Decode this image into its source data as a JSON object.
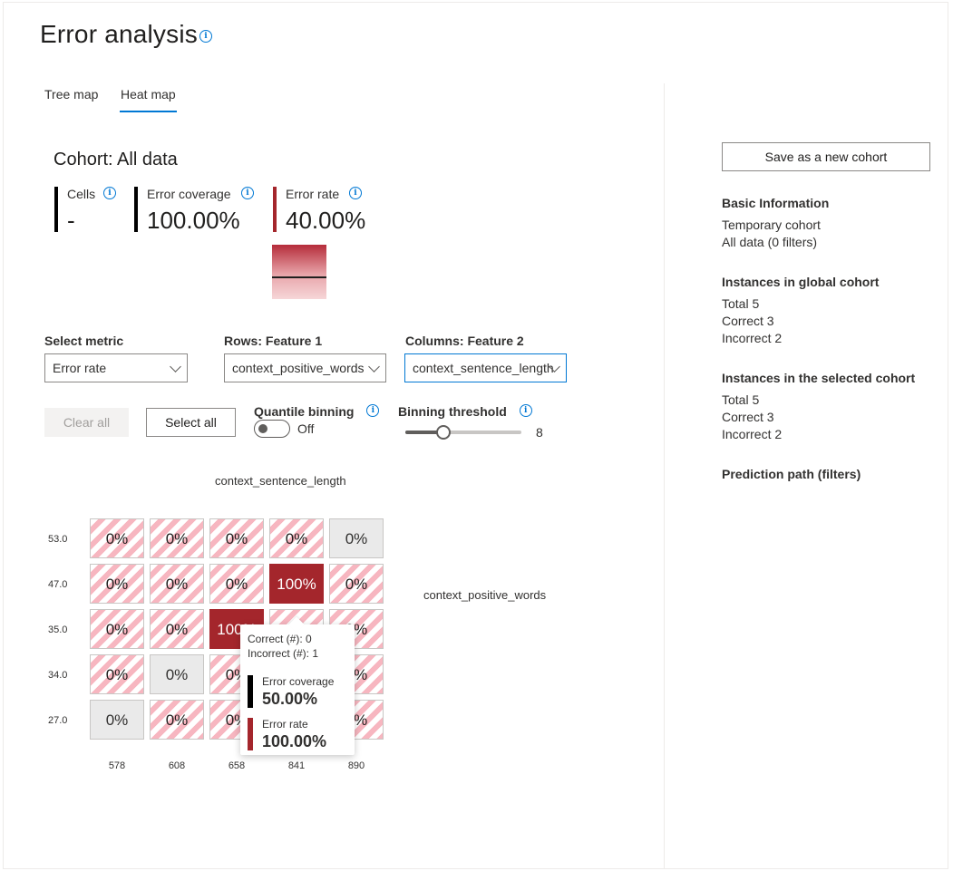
{
  "header": {
    "title": "Error analysis"
  },
  "tabs": [
    {
      "label": "Tree map"
    },
    {
      "label": "Heat map"
    }
  ],
  "cohort": {
    "title": "Cohort: All data",
    "cells_label": "Cells",
    "cells_value": "-",
    "coverage_label": "Error coverage",
    "coverage_value": "100.00%",
    "rate_label": "Error rate",
    "rate_value": "40.00%"
  },
  "controls": {
    "metric_label": "Select metric",
    "metric_value": "Error rate",
    "rows_label": "Rows: Feature 1",
    "rows_value": "context_positive_words",
    "cols_label": "Columns: Feature 2",
    "cols_value": "context_sentence_length",
    "clear_all": "Clear all",
    "select_all": "Select all",
    "quantile_label": "Quantile binning",
    "quantile_state": "Off",
    "threshold_label": "Binning threshold",
    "threshold_value": "8"
  },
  "heatmap": {
    "col_axis_title": "context_sentence_length",
    "row_axis_title": "context_positive_words",
    "row_labels": [
      "53.0",
      "47.0",
      "35.0",
      "34.0",
      "27.0"
    ],
    "col_labels": [
      "578",
      "608",
      "658",
      "841",
      "890"
    ],
    "cells": [
      [
        "0%",
        "0%",
        "0%",
        "0%",
        "0%"
      ],
      [
        "0%",
        "0%",
        "0%",
        "100%",
        "0%"
      ],
      [
        "0%",
        "0%",
        "100%",
        "",
        "0%"
      ],
      [
        "0%",
        "0%",
        "0%",
        "",
        "0%"
      ],
      [
        "0%",
        "0%",
        "0%",
        "",
        "0%"
      ]
    ]
  },
  "tooltip": {
    "correct": "Correct (#): 0",
    "incorrect": "Incorrect (#): 1",
    "coverage_label": "Error coverage",
    "coverage_value": "50.00%",
    "rate_label": "Error rate",
    "rate_value": "100.00%"
  },
  "sidebar": {
    "save_button": "Save as a new cohort",
    "basic_title": "Basic Information",
    "basic_lines": [
      "Temporary cohort",
      "All data (0 filters)"
    ],
    "global_title": "Instances in global cohort",
    "global_lines": [
      "Total 5",
      "Correct 3",
      "Incorrect 2"
    ],
    "selected_title": "Instances in the selected cohort",
    "selected_lines": [
      "Total 5",
      "Correct 3",
      "Incorrect 2"
    ],
    "path_title": "Prediction path (filters)"
  },
  "colors": {
    "accent": "#0078d4",
    "error": "#a4262c",
    "coverage": "#000000"
  }
}
